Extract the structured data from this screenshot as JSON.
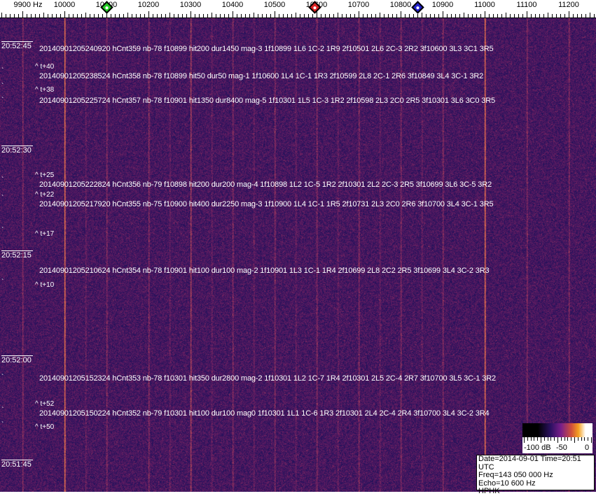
{
  "freq_axis": {
    "unit_label": "9900 Hz",
    "labels": [
      "10000",
      "10100",
      "10200",
      "10300",
      "10400",
      "10500",
      "10600",
      "10700",
      "10800",
      "10900",
      "11000",
      "11100",
      "11200"
    ]
  },
  "markers": [
    {
      "name": "green-marker",
      "freq": 10100,
      "color": "#22cc22"
    },
    {
      "name": "red-marker",
      "freq": 10595,
      "color": "#dd2222"
    },
    {
      "name": "blue-marker",
      "freq": 10840,
      "color": "#2222cc"
    }
  ],
  "time_labels": [
    "20:52:45",
    "20:52:30",
    "20:52:15",
    "20:52:00",
    "20:51:45"
  ],
  "events": [
    "20140901205240920 hCnt359 nb-78 f10899 hit200 dur1450 mag-3 1f10899 1L6 1C-2 1R9 2f10501 2L6 2C-3 2R2 3f10600 3L3 3C1 3R5",
    "20140901205238524 hCnt358 nb-78 f10899 hit50 dur50 mag-1 1f10600 1L4 1C-1 1R3 2f10599 2L8 2C-1 2R6 3f10849 3L4 3C-1 3R2",
    "20140901205225724 hCnt357 nb-78 f10901 hit1350 dur8400 mag-5 1f10301 1L5 1C-3 1R2 2f10598 2L3 2C0 2R5 3f10301 3L6 3C0 3R5",
    "20140901205222824 hCnt356 nb-79 f10898 hit200 dur200 mag-4 1f10898 1L2 1C-5 1R2 2f10301 2L2 2C-3 2R5 3f10699 3L6 3C-5 3R2",
    "20140901205217920 hCnt355 nb-75 f10900 hit400 dur2250 mag-3 1f10900 1L4 1C-1 1R5 2f10731 2L3 2C0 2R6 3f10700 3L4 3C-1 3R5",
    "20140901205210624 hCnt354 nb-78 f10901 hit100 dur100 mag-2 1f10901 1L3 1C-1 1R4 2f10699 2L8 2C2 2R5 3f10699 3L4 3C-2 3R3",
    "20140901205152324 hCnt353 nb-78 f10301 hit350 dur2800 mag-2 1f10301 1L2 1C-7 1R4 2f10301 2L5 2C-4 2R7 3f10700 3L5 3C-1 3R2",
    "20140901205150224 hCnt352 nb-79 f10301 hit100 dur100 mag0 1f10301 1L1 1C-6 1R3 2f10301 2L4 2C-4 2R4 3f10700 3L4 3C-2 3R4"
  ],
  "offsets": [
    "^ t+40",
    "^ t+38",
    "^ t+25",
    "^ t+22",
    "^ t+17",
    "^ t+10",
    "^ t+52",
    "^ t+50"
  ],
  "colorbar": {
    "labels": [
      "-100 dB",
      "-50",
      "0"
    ]
  },
  "info": {
    "date_time": "Date=2014-09-01 Time=20:51 UTC",
    "freq": "Freq=143 050 000 Hz",
    "echo": "Echo=10 600 Hz",
    "station": "HPHK"
  }
}
